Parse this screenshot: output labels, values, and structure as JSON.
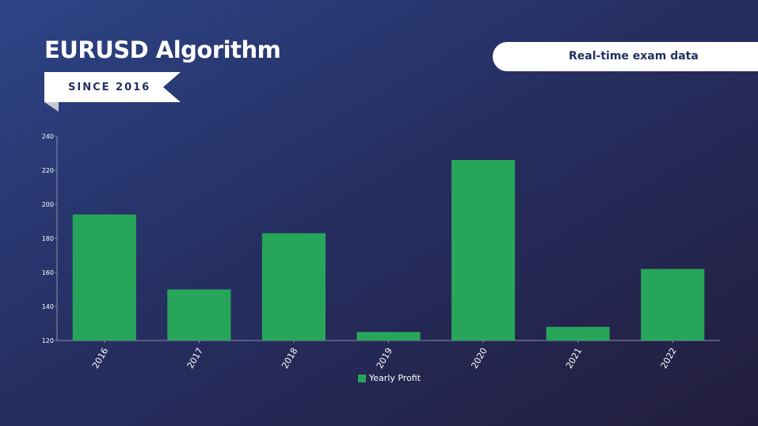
{
  "title": "EURUSD Algorithm",
  "ribbon": {
    "label": "SINCE 2016"
  },
  "badge": {
    "label": "Real-time exam data"
  },
  "colors": {
    "bar": "#27a65b",
    "text": "#ffffff",
    "accent": "#243063"
  },
  "chart_data": {
    "type": "bar",
    "categories": [
      "2016",
      "2017",
      "2018",
      "2019",
      "2020",
      "2021",
      "2022"
    ],
    "series": [
      {
        "name": "Yearly Profit",
        "values": [
          194,
          150,
          183,
          125,
          226,
          128,
          162
        ]
      }
    ],
    "ylim": [
      120,
      240
    ],
    "yticks": [
      120,
      140,
      160,
      180,
      200,
      220,
      240
    ],
    "grid": false,
    "legend": "bottom"
  }
}
